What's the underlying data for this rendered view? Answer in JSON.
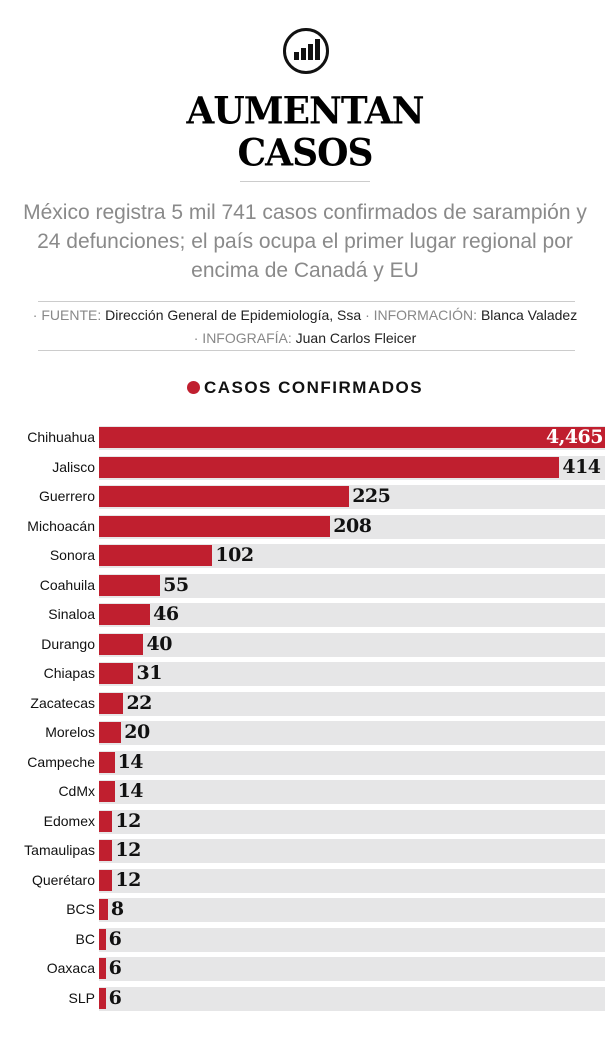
{
  "header": {
    "icon": "bar-chart-icon",
    "title_line1": "AUMENTAN",
    "title_line2": "CASOS",
    "subtitle": "México registra 5 mil 741 casos confirmados de sarampión y 24 defunciones; el país ocupa el primer lugar regional por encima de Canadá y EU"
  },
  "credits": {
    "source_key": "· FUENTE:",
    "source_val": "Dirección General de Epidemiología, Ssa",
    "info_key": "· INFORMACIÓN:",
    "info_val": "Blanca Valadez",
    "graphic_key": "· INFOGRAFÍA:",
    "graphic_val": "Juan Carlos Fleicer"
  },
  "chart_data": {
    "type": "bar",
    "orientation": "horizontal",
    "legend": "CASOS CONFIRMADOS",
    "bar_color": "#c01f2f",
    "track_color": "#e6e6e7",
    "categories": [
      "Chihuahua",
      "Jalisco",
      "Guerrero",
      "Michoacán",
      "Sonora",
      "Coahuila",
      "Sinaloa",
      "Durango",
      "Chiapas",
      "Zacatecas",
      "Morelos",
      "Campeche",
      "CdMx",
      "Edomex",
      "Tamaulipas",
      "Querétaro",
      "BCS",
      "BC",
      "Oaxaca",
      "SLP"
    ],
    "values": [
      4465,
      414,
      225,
      208,
      102,
      55,
      46,
      40,
      31,
      22,
      20,
      14,
      14,
      12,
      12,
      12,
      8,
      6,
      6,
      6
    ],
    "value_labels": [
      "4,465",
      "414",
      "225",
      "208",
      "102",
      "55",
      "46",
      "40",
      "31",
      "22",
      "20",
      "14",
      "14",
      "12",
      "12",
      "12",
      "8",
      "6",
      "6",
      "6"
    ]
  }
}
